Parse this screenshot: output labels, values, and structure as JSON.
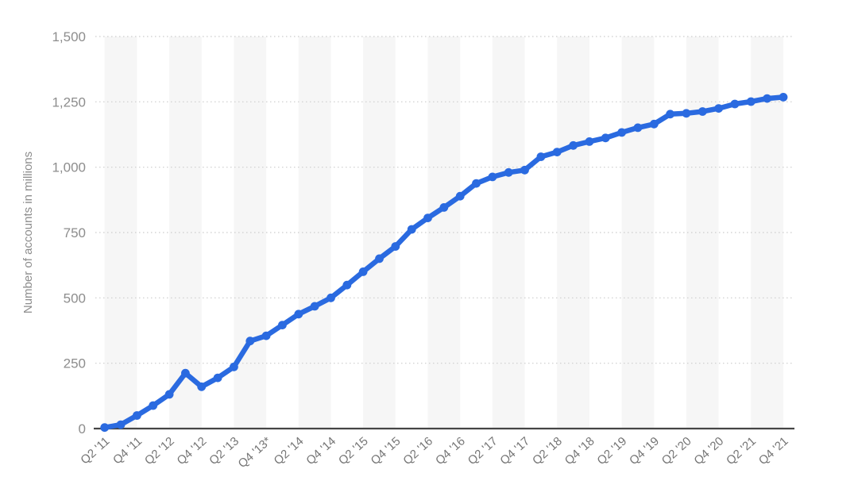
{
  "chart_data": {
    "type": "line",
    "title": "",
    "xlabel": "",
    "ylabel": "Number of accounts in millions",
    "ylim": [
      0,
      1500
    ],
    "grid": "horizontal-dotted",
    "legend": "none",
    "line_color": "#2a6ae0",
    "point_color": "#2a6ae0",
    "band_color": "#f6f6f6",
    "gridline_color": "#cccccc",
    "axis_color": "#454545",
    "y_tick_labels": [
      "0",
      "250",
      "500",
      "750",
      "1,000",
      "1,250",
      "1,500"
    ],
    "y_tick_values": [
      0,
      250,
      500,
      750,
      1000,
      1250,
      1500
    ],
    "x_tick_labels": [
      "Q2 '11",
      "Q4 '11",
      "Q2 '12",
      "Q4 '12",
      "Q2 '13",
      "Q4 '13*",
      "Q2 '14",
      "Q4 '14",
      "Q2 '15",
      "Q4 '15",
      "Q2 '16",
      "Q4 '16",
      "Q2 '17",
      "Q4 '17",
      "Q2 '18",
      "Q4 '18",
      "Q2 '19",
      "Q4 '19",
      "Q2 '20",
      "Q4 '20",
      "Q2 '21",
      "Q4 '21"
    ],
    "categories": [
      "Q2 '11",
      "Q3 '11",
      "Q4 '11",
      "Q1 '12",
      "Q2 '12",
      "Q3 '12",
      "Q4 '12",
      "Q1 '13",
      "Q2 '13",
      "Q3 '13",
      "Q4 '13",
      "Q1 '14",
      "Q2 '14",
      "Q3 '14",
      "Q4 '14",
      "Q1 '15",
      "Q2 '15",
      "Q3 '15",
      "Q4 '15",
      "Q1 '16",
      "Q2 '16",
      "Q3 '16",
      "Q4 '16",
      "Q1 '17",
      "Q2 '17",
      "Q3 '17",
      "Q4 '17",
      "Q1 '18",
      "Q2 '18",
      "Q3 '18",
      "Q4 '18",
      "Q1 '19",
      "Q2 '19",
      "Q3 '19",
      "Q4 '19",
      "Q1 '20",
      "Q2 '20",
      "Q3 '20",
      "Q4 '20",
      "Q1 '21",
      "Q2 '21",
      "Q3 '21",
      "Q4 '21"
    ],
    "values": [
      4,
      15,
      50,
      88,
      131,
      212,
      160,
      194,
      236,
      335,
      355,
      396,
      438,
      468,
      500,
      549,
      600,
      650,
      697,
      762,
      806,
      846,
      889,
      938,
      963,
      980,
      989,
      1040,
      1058,
      1083,
      1098,
      1112,
      1133,
      1151,
      1165,
      1203,
      1206,
      1213,
      1225,
      1242,
      1251,
      1263,
      1268
    ]
  }
}
